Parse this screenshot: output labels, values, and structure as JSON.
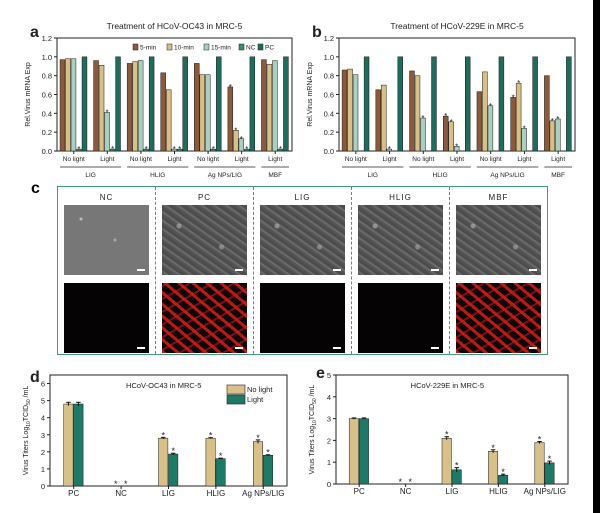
{
  "panel_letters": [
    "a",
    "b",
    "c",
    "d",
    "e"
  ],
  "colors": {
    "5-min": "#8b5a3c",
    "10-min": "#d8bf86",
    "15-min": "#a9cfc0",
    "NC": "#3e8c6e",
    "PC": "#1f6b5c",
    "No light": "#d8c08a",
    "Light": "#1e7a66",
    "frame": "#3f9a86"
  },
  "panel_c": {
    "labels": [
      "NC",
      "PC",
      "LIG",
      "HLIG",
      "MBF"
    ],
    "rows": [
      "bright-field",
      "red-fluorescence"
    ],
    "fluorescence_positive": [
      false,
      true,
      false,
      false,
      true
    ]
  },
  "chart_data": [
    {
      "panel": "a",
      "type": "bar",
      "title": "Treatment of HCoV-OC43 in MRC-5",
      "ylabel": "Rel.Virus mRNA Exp",
      "ylim": [
        0,
        1.2
      ],
      "yticks": [
        "0.0",
        "0.2",
        "0.4",
        "0.6",
        "0.8",
        "1.0",
        "1.2"
      ],
      "categories": [
        "No light",
        "Light",
        "No light",
        "Light",
        "No light",
        "Light",
        "Light"
      ],
      "group_labels": [
        {
          "label": "LIG",
          "span": [
            0,
            1
          ]
        },
        {
          "label": "HLIG",
          "span": [
            2,
            3
          ]
        },
        {
          "label": "Ag NPs/LIG",
          "span": [
            4,
            5
          ]
        },
        {
          "label": "MBF",
          "span": [
            6,
            6
          ]
        }
      ],
      "legend": "top-right",
      "series": [
        {
          "name": "5-min",
          "values": [
            0.97,
            0.96,
            0.93,
            0.83,
            0.93,
            0.68,
            0.97
          ],
          "sig": [
            false,
            false,
            false,
            false,
            false,
            true,
            false
          ]
        },
        {
          "name": "10-min",
          "values": [
            0.98,
            0.91,
            0.95,
            0.65,
            0.81,
            0.22,
            0.92
          ],
          "sig": [
            false,
            false,
            false,
            false,
            false,
            true,
            false
          ]
        },
        {
          "name": "15-min",
          "values": [
            0.98,
            0.41,
            0.96,
            0.02,
            0.81,
            0.13,
            0.96
          ],
          "sig": [
            false,
            true,
            false,
            true,
            false,
            true,
            false
          ]
        },
        {
          "name": "NC",
          "values": [
            0.02,
            0.02,
            0.02,
            0.02,
            0.02,
            0.02,
            0.02
          ],
          "sig": [
            true,
            true,
            true,
            true,
            true,
            true,
            true
          ]
        },
        {
          "name": "PC",
          "values": [
            1.0,
            1.0,
            1.0,
            1.0,
            1.0,
            1.0,
            1.0
          ],
          "sig": [
            false,
            false,
            false,
            false,
            false,
            false,
            false
          ]
        }
      ]
    },
    {
      "panel": "b",
      "type": "bar",
      "title": "Treatment of HCoV-229E in MRC-5",
      "ylabel": "Rel.Virus mRNA Exp",
      "ylim": [
        0,
        1.2
      ],
      "yticks": [
        "0.0",
        "0.2",
        "0.4",
        "0.6",
        "0.8",
        "1.0",
        "1.2"
      ],
      "categories": [
        "No light",
        "Light",
        "No light",
        "Light",
        "No light",
        "Light",
        "Light"
      ],
      "group_labels": [
        {
          "label": "LIG",
          "span": [
            0,
            1
          ]
        },
        {
          "label": "HLIG",
          "span": [
            2,
            3
          ]
        },
        {
          "label": "Ag NPs/LIG",
          "span": [
            4,
            5
          ]
        },
        {
          "label": "MBF",
          "span": [
            6,
            6
          ]
        }
      ],
      "series": [
        {
          "name": "5-min",
          "values": [
            0.86,
            0.65,
            0.85,
            0.37,
            0.63,
            0.57,
            0.8
          ],
          "sig": [
            false,
            false,
            false,
            true,
            false,
            true,
            false
          ]
        },
        {
          "name": "10-min",
          "values": [
            0.87,
            0.7,
            0.8,
            0.31,
            0.84,
            0.72,
            0.32
          ],
          "sig": [
            false,
            false,
            false,
            true,
            false,
            true,
            true
          ]
        },
        {
          "name": "15-min",
          "values": [
            0.81,
            0.02,
            0.35,
            0.05,
            0.48,
            0.24,
            0.34
          ],
          "sig": [
            false,
            true,
            true,
            true,
            true,
            true,
            true
          ]
        },
        {
          "name": "NC",
          "values": [
            0,
            0,
            0,
            0,
            0,
            0,
            0
          ],
          "sig": [
            false,
            false,
            false,
            false,
            false,
            false,
            false
          ]
        },
        {
          "name": "PC",
          "values": [
            1.0,
            1.0,
            1.0,
            1.0,
            1.0,
            1.0,
            1.0
          ],
          "sig": [
            false,
            false,
            false,
            false,
            false,
            false,
            false
          ]
        }
      ]
    },
    {
      "panel": "d",
      "type": "bar",
      "title": "HCoV-OC43 in MRC-5",
      "ylabel_parts": [
        "Virus Titers Log",
        "10",
        "TCID",
        "50",
        " /mL"
      ],
      "ylim": [
        0,
        6.5
      ],
      "yticks": [
        "0",
        "1",
        "2",
        "3",
        "4",
        "5",
        "6"
      ],
      "categories": [
        "PC",
        "NC",
        "LIG",
        "HLIG",
        "Ag NPs/LIG"
      ],
      "legend": "top-right",
      "series": [
        {
          "name": "No light",
          "values": [
            4.8,
            0,
            2.8,
            2.8,
            2.6
          ],
          "err": [
            0.1,
            0,
            0.05,
            0.03,
            0.1
          ],
          "sig": [
            false,
            true,
            true,
            true,
            true
          ]
        },
        {
          "name": "Light",
          "values": [
            4.8,
            0,
            1.87,
            1.6,
            1.8
          ],
          "err": [
            0.1,
            0,
            0.05,
            0.03,
            0.03
          ],
          "sig": [
            false,
            true,
            true,
            true,
            true
          ]
        }
      ]
    },
    {
      "panel": "e",
      "type": "bar",
      "title": "HCoV-229E in MRC-5",
      "ylabel_parts": [
        "Virus Titers Log",
        "10",
        "TCID",
        "50",
        " /mL"
      ],
      "ylim": [
        0,
        5
      ],
      "yticks": [
        "0",
        "1",
        "2",
        "3",
        "4",
        "5"
      ],
      "categories": [
        "PC",
        "NC",
        "LIG",
        "HLIG",
        "Ag NPs/LIG"
      ],
      "series": [
        {
          "name": "No light",
          "values": [
            3.0,
            0,
            2.1,
            1.5,
            1.9
          ],
          "err": [
            0.03,
            0,
            0.07,
            0.07,
            0.05
          ],
          "sig": [
            false,
            true,
            true,
            true,
            true
          ]
        },
        {
          "name": "Light",
          "values": [
            3.0,
            0,
            0.65,
            0.4,
            0.97
          ],
          "err": [
            0.03,
            0,
            0.1,
            0.05,
            0.08
          ],
          "sig": [
            false,
            true,
            true,
            true,
            true
          ]
        }
      ]
    }
  ]
}
